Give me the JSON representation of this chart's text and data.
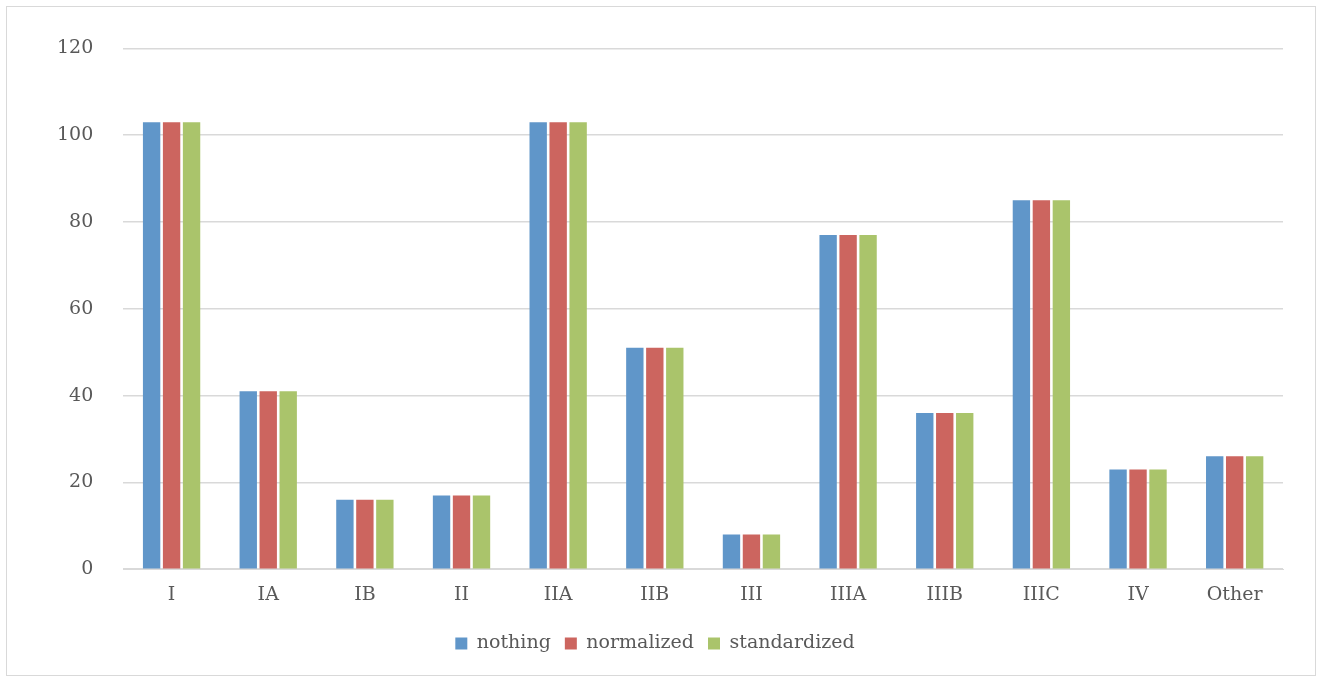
{
  "chart_data": {
    "type": "bar",
    "categories": [
      "I",
      "IA",
      "IB",
      "II",
      "IIA",
      "IIB",
      "III",
      "IIIA",
      "IIIB",
      "IIIC",
      "IV",
      "Other"
    ],
    "series": [
      {
        "name": "nothing",
        "color": "#6096c9",
        "values": [
          103,
          41,
          16,
          17,
          103,
          51,
          8,
          77,
          36,
          85,
          23,
          26
        ]
      },
      {
        "name": "normalized",
        "color": "#cc655f",
        "values": [
          103,
          41,
          16,
          17,
          103,
          51,
          8,
          77,
          36,
          85,
          23,
          26
        ]
      },
      {
        "name": "standardized",
        "color": "#aac46b",
        "values": [
          103,
          41,
          16,
          17,
          103,
          51,
          8,
          77,
          36,
          85,
          23,
          26
        ]
      }
    ],
    "ylim": [
      0,
      120
    ],
    "yticks": [
      0,
      20,
      40,
      60,
      80,
      100,
      120
    ],
    "grid": "y",
    "legend": "bottom"
  }
}
